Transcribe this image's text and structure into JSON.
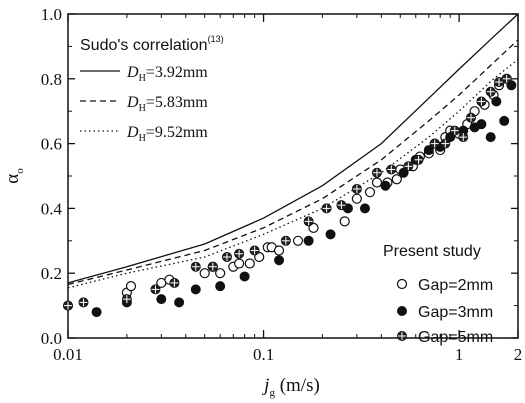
{
  "chart_data": {
    "type": "scatter",
    "xscale": "log",
    "xlim": [
      0.01,
      2
    ],
    "ylim": [
      0.0,
      1.0
    ],
    "xlabel_main": "j",
    "xlabel_sub": "g",
    "xlabel_units": " (m/s)",
    "ylabel_main": "α",
    "ylabel_sub": "o",
    "x_ticks": [
      {
        "value": 0.01,
        "label": "0.01"
      },
      {
        "value": 0.1,
        "label": "0.1"
      },
      {
        "value": 1,
        "label": "1"
      },
      {
        "value": 2,
        "label": "2"
      }
    ],
    "y_ticks": [
      {
        "value": 0.0,
        "label": "0.0"
      },
      {
        "value": 0.2,
        "label": "0.2"
      },
      {
        "value": 0.4,
        "label": "0.4"
      },
      {
        "value": 0.6,
        "label": "0.6"
      },
      {
        "value": 0.8,
        "label": "0.8"
      },
      {
        "value": 1.0,
        "label": "1.0"
      }
    ],
    "correlation_legend": {
      "title": "Sudo's correlation",
      "title_ref": "(13)",
      "lines": [
        {
          "sym": "D",
          "sub": "H",
          "rest": "=3.92mm",
          "dash": "solid"
        },
        {
          "sym": "D",
          "sub": "H",
          "rest": "=5.83mm",
          "dash": "dashed"
        },
        {
          "sym": "D",
          "sub": "H",
          "rest": "=9.52mm",
          "dash": "dotted"
        }
      ]
    },
    "study_legend": {
      "title": "Present study",
      "entries": [
        {
          "label": "Gap=2mm",
          "marker": "open"
        },
        {
          "label": "Gap=3mm",
          "marker": "filled"
        },
        {
          "label": "Gap=5mm",
          "marker": "cross"
        }
      ]
    },
    "curves": [
      {
        "dash": "solid",
        "points": [
          [
            0.01,
            0.17
          ],
          [
            0.02,
            0.22
          ],
          [
            0.05,
            0.29
          ],
          [
            0.1,
            0.37
          ],
          [
            0.2,
            0.47
          ],
          [
            0.4,
            0.6
          ],
          [
            0.7,
            0.74
          ],
          [
            1.0,
            0.83
          ],
          [
            1.5,
            0.93
          ],
          [
            2.0,
            1.0
          ]
        ]
      },
      {
        "dash": "dashed",
        "points": [
          [
            0.01,
            0.165
          ],
          [
            0.02,
            0.21
          ],
          [
            0.05,
            0.27
          ],
          [
            0.1,
            0.34
          ],
          [
            0.2,
            0.43
          ],
          [
            0.4,
            0.55
          ],
          [
            0.7,
            0.67
          ],
          [
            1.0,
            0.75
          ],
          [
            1.5,
            0.85
          ],
          [
            2.0,
            0.92
          ]
        ]
      },
      {
        "dash": "dotted",
        "points": [
          [
            0.01,
            0.155
          ],
          [
            0.02,
            0.2
          ],
          [
            0.05,
            0.25
          ],
          [
            0.1,
            0.32
          ],
          [
            0.2,
            0.4
          ],
          [
            0.4,
            0.51
          ],
          [
            0.7,
            0.62
          ],
          [
            1.0,
            0.7
          ],
          [
            1.5,
            0.8
          ],
          [
            2.0,
            0.86
          ]
        ]
      }
    ],
    "series": [
      {
        "marker": "open",
        "points": [
          [
            0.02,
            0.14
          ],
          [
            0.021,
            0.16
          ],
          [
            0.03,
            0.17
          ],
          [
            0.033,
            0.18
          ],
          [
            0.05,
            0.2
          ],
          [
            0.055,
            0.22
          ],
          [
            0.06,
            0.2
          ],
          [
            0.07,
            0.22
          ],
          [
            0.075,
            0.23
          ],
          [
            0.085,
            0.23
          ],
          [
            0.095,
            0.25
          ],
          [
            0.105,
            0.28
          ],
          [
            0.11,
            0.28
          ],
          [
            0.12,
            0.27
          ],
          [
            0.15,
            0.3
          ],
          [
            0.18,
            0.34
          ],
          [
            0.26,
            0.36
          ],
          [
            0.3,
            0.43
          ],
          [
            0.35,
            0.45
          ],
          [
            0.38,
            0.48
          ],
          [
            0.43,
            0.48
          ],
          [
            0.48,
            0.49
          ],
          [
            0.5,
            0.52
          ],
          [
            0.58,
            0.53
          ],
          [
            0.63,
            0.56
          ],
          [
            0.7,
            0.57
          ],
          [
            0.75,
            0.6
          ],
          [
            0.8,
            0.58
          ],
          [
            0.85,
            0.62
          ],
          [
            0.9,
            0.64
          ],
          [
            1.0,
            0.63
          ],
          [
            1.1,
            0.66
          ],
          [
            1.2,
            0.7
          ],
          [
            1.35,
            0.72
          ],
          [
            1.5,
            0.75
          ],
          [
            1.6,
            0.78
          ],
          [
            1.75,
            0.8
          ]
        ]
      },
      {
        "marker": "filled",
        "points": [
          [
            0.01,
            0.1
          ],
          [
            0.014,
            0.08
          ],
          [
            0.02,
            0.11
          ],
          [
            0.03,
            0.12
          ],
          [
            0.037,
            0.11
          ],
          [
            0.045,
            0.15
          ],
          [
            0.06,
            0.16
          ],
          [
            0.08,
            0.19
          ],
          [
            0.12,
            0.24
          ],
          [
            0.17,
            0.3
          ],
          [
            0.22,
            0.32
          ],
          [
            0.27,
            0.4
          ],
          [
            0.33,
            0.4
          ],
          [
            0.42,
            0.47
          ],
          [
            0.52,
            0.51
          ],
          [
            0.6,
            0.55
          ],
          [
            0.7,
            0.58
          ],
          [
            0.8,
            0.59
          ],
          [
            0.9,
            0.62
          ],
          [
            1.05,
            0.64
          ],
          [
            1.2,
            0.65
          ],
          [
            1.3,
            0.66
          ],
          [
            1.45,
            0.62
          ],
          [
            1.55,
            0.73
          ],
          [
            1.7,
            0.67
          ],
          [
            1.85,
            0.78
          ]
        ]
      },
      {
        "marker": "cross",
        "points": [
          [
            0.01,
            0.1
          ],
          [
            0.012,
            0.11
          ],
          [
            0.02,
            0.12
          ],
          [
            0.028,
            0.15
          ],
          [
            0.035,
            0.17
          ],
          [
            0.045,
            0.22
          ],
          [
            0.055,
            0.22
          ],
          [
            0.065,
            0.25
          ],
          [
            0.075,
            0.26
          ],
          [
            0.09,
            0.27
          ],
          [
            0.13,
            0.3
          ],
          [
            0.17,
            0.36
          ],
          [
            0.21,
            0.4
          ],
          [
            0.25,
            0.41
          ],
          [
            0.3,
            0.46
          ],
          [
            0.38,
            0.51
          ],
          [
            0.45,
            0.52
          ],
          [
            0.55,
            0.53
          ],
          [
            0.62,
            0.55
          ],
          [
            0.75,
            0.6
          ],
          [
            0.85,
            0.6
          ],
          [
            0.95,
            0.64
          ],
          [
            1.05,
            0.62
          ],
          [
            1.15,
            0.68
          ],
          [
            1.3,
            0.73
          ],
          [
            1.45,
            0.76
          ],
          [
            1.6,
            0.79
          ],
          [
            1.75,
            0.8
          ]
        ]
      }
    ]
  }
}
